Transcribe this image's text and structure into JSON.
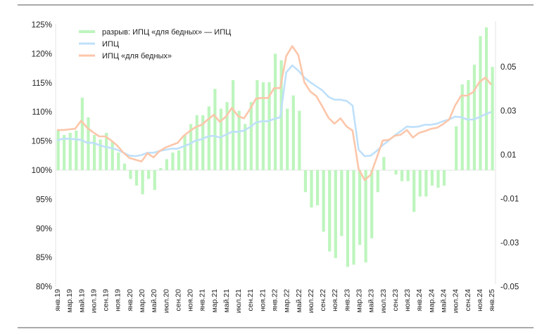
{
  "chart_data": {
    "type": "bar+line",
    "title": "",
    "left_axis": {
      "ticks": [
        80,
        85,
        90,
        95,
        100,
        105,
        110,
        115,
        120,
        125
      ],
      "tick_suffix": "%",
      "ylim": [
        80,
        125
      ]
    },
    "right_axis": {
      "tick_labels": [
        "0.05",
        "0.03",
        "0.01",
        "-0.01",
        "-0.03",
        "-0.05"
      ],
      "ticks": [
        0.05,
        0.03,
        0.01,
        -0.01,
        -0.03,
        -0.05
      ]
    },
    "x_labels": [
      "янв.19",
      "мар.19",
      "май.19",
      "июл.19",
      "сен.19",
      "ноя.19",
      "янв.20",
      "мар.20",
      "май.20",
      "июл.20",
      "сен.20",
      "ноя.20",
      "янв.21",
      "мар.21",
      "май.21",
      "июл.21",
      "сен.21",
      "ноя.21",
      "янв.22",
      "мар.22",
      "май.22",
      "июл.22",
      "сен.22",
      "ноя.22",
      "янв.23",
      "мар.23",
      "май.23",
      "июл.23",
      "сен.23",
      "ноя.23",
      "янв.24",
      "мар.24",
      "май.24",
      "июл.24",
      "сен.24",
      "ноя.24",
      "янв.25"
    ],
    "x_range": [
      "янв.19",
      "янв.25"
    ],
    "legend_position": "top-left",
    "grid": false,
    "series": [
      {
        "name": "разрыв: ИПЦ «для бедных» — ИПЦ",
        "type": "bar",
        "axis": "right",
        "color": "#bdf5bd",
        "values": [
          0.018,
          0.016,
          0.017,
          0.018,
          0.033,
          0.024,
          0.016,
          0.014,
          0.017,
          0.013,
          0.008,
          0.003,
          -0.004,
          -0.007,
          -0.011,
          -0.004,
          -0.009,
          0.001,
          0.005,
          0.008,
          0.009,
          0.016,
          0.021,
          0.025,
          0.025,
          0.029,
          0.037,
          0.028,
          0.031,
          0.041,
          0.027,
          0.021,
          0.031,
          0.041,
          0.04,
          0.04,
          0.053,
          0.05,
          0.028,
          0.034,
          0.027,
          -0.01,
          -0.017,
          -0.016,
          -0.028,
          -0.037,
          -0.04,
          -0.03,
          -0.044,
          -0.043,
          -0.034,
          -0.042,
          -0.031,
          -0.01,
          0.006,
          0.0,
          -0.002,
          -0.005,
          -0.005,
          -0.019,
          -0.012,
          -0.012,
          -0.007,
          -0.008,
          -0.007,
          0.0,
          0.02,
          0.039,
          0.041,
          0.048,
          0.061,
          0.065,
          0.047
        ]
      },
      {
        "name": "ИПЦ",
        "type": "line",
        "axis": "left",
        "color": "#bfe0fa",
        "values": [
          105.1,
          105.4,
          105.4,
          105.3,
          105.2,
          104.7,
          104.7,
          104.3,
          104.0,
          103.8,
          103.5,
          103.0,
          102.5,
          102.4,
          102.6,
          103.0,
          103.0,
          103.3,
          103.5,
          103.7,
          103.7,
          104.1,
          104.5,
          105.1,
          105.3,
          105.8,
          105.9,
          105.6,
          106.1,
          106.6,
          106.6,
          106.8,
          107.4,
          108.2,
          108.4,
          108.4,
          108.8,
          109.1,
          116.8,
          118.0,
          117.1,
          115.9,
          115.1,
          114.4,
          113.7,
          112.6,
          112.1,
          112.1,
          111.9,
          111.1,
          103.5,
          102.4,
          102.5,
          103.3,
          104.3,
          105.1,
          106.0,
          106.7,
          107.5,
          107.4,
          107.5,
          107.8,
          107.8,
          108.0,
          108.4,
          108.7,
          109.2,
          109.1,
          108.7,
          108.7,
          109.1,
          109.6,
          110.0
        ]
      },
      {
        "name": "ИПЦ «для бедных»",
        "type": "line",
        "axis": "left",
        "color": "#fcc6aa",
        "values": [
          106.9,
          106.9,
          107.0,
          107.1,
          108.5,
          107.3,
          106.5,
          105.8,
          105.8,
          105.1,
          104.2,
          103.0,
          102.1,
          101.8,
          101.5,
          102.9,
          102.2,
          103.3,
          103.9,
          104.3,
          104.7,
          105.9,
          106.7,
          107.4,
          107.8,
          108.7,
          109.5,
          108.3,
          109.2,
          110.7,
          109.3,
          108.9,
          110.5,
          112.3,
          112.4,
          112.4,
          114.1,
          114.1,
          119.6,
          121.3,
          119.8,
          115.1,
          113.5,
          112.7,
          110.9,
          109.0,
          108.0,
          108.9,
          107.5,
          106.8,
          100.2,
          98.3,
          99.2,
          102.1,
          105.1,
          105.2,
          105.9,
          106.1,
          106.9,
          105.6,
          106.4,
          106.7,
          107.1,
          107.3,
          107.9,
          108.7,
          111.1,
          112.8,
          112.8,
          113.4,
          115.1,
          115.9,
          114.7
        ]
      }
    ]
  }
}
